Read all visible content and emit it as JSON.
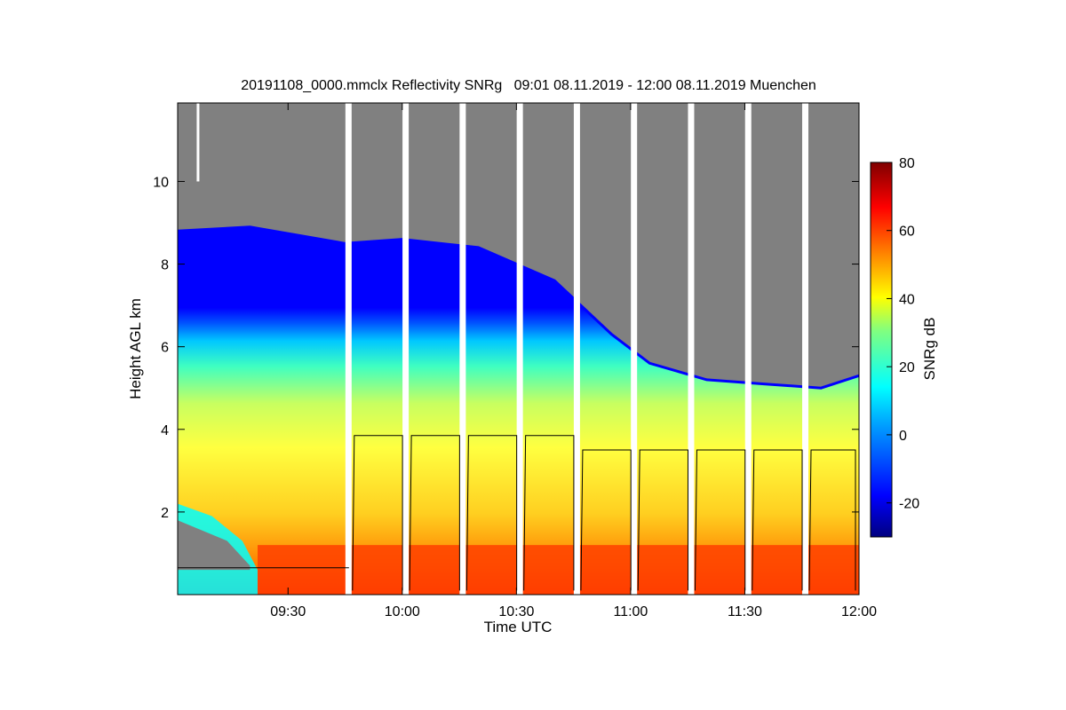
{
  "chart_data": {
    "type": "heatmap",
    "title": "20191108_0000.mmclx Reflectivity SNRg   09:01 08.11.2019 - 12:00 08.11.2019 Muenchen",
    "xlabel": "Time UTC",
    "ylabel": "Height AGL km",
    "colorbar_label": "SNRg dB",
    "x_range": [
      "09:01",
      "12:00"
    ],
    "x_ticks": [
      "09:30",
      "10:00",
      "10:30",
      "11:00",
      "11:30",
      "12:00"
    ],
    "y_range_km": [
      0,
      11.9
    ],
    "y_ticks": [
      2,
      4,
      6,
      8,
      10
    ],
    "colorbar_range_db": [
      -30,
      80
    ],
    "colorbar_ticks": [
      -20,
      0,
      20,
      40,
      60,
      80
    ],
    "colormap": [
      "#00007f",
      "#0000ff",
      "#0080ff",
      "#00ffff",
      "#80ff80",
      "#ffff00",
      "#ff8000",
      "#ff0000",
      "#7f0000"
    ],
    "nodata_color": "#808080",
    "echo_top_profile_km": [
      {
        "time": "09:01",
        "top": 8.8
      },
      {
        "time": "09:20",
        "top": 8.9
      },
      {
        "time": "09:45",
        "top": 8.5
      },
      {
        "time": "10:00",
        "top": 8.6
      },
      {
        "time": "10:20",
        "top": 8.4
      },
      {
        "time": "10:40",
        "top": 7.6
      },
      {
        "time": "10:55",
        "top": 6.3
      },
      {
        "time": "11:05",
        "top": 5.6
      },
      {
        "time": "11:20",
        "top": 5.2
      },
      {
        "time": "11:35",
        "top": 5.1
      },
      {
        "time": "11:50",
        "top": 5.0
      },
      {
        "time": "12:00",
        "top": 5.3
      }
    ],
    "scan_gaps": [
      "09:46",
      "10:01",
      "10:16",
      "10:31",
      "10:46",
      "11:01",
      "11:16",
      "11:31",
      "11:46"
    ],
    "overlay_line_km": [
      {
        "from": "09:46",
        "to": "10:46",
        "level": 3.85
      },
      {
        "from": "10:46",
        "to": "12:00",
        "level": 3.5
      }
    ]
  }
}
